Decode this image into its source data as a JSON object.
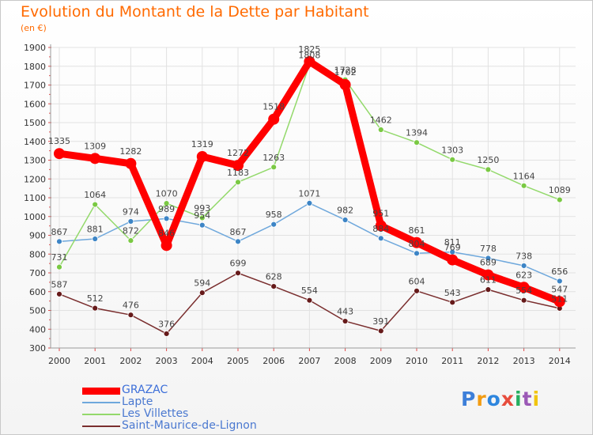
{
  "title": "Evolution du Montant de la Dette par Habitant",
  "subtitle": "(en €)",
  "logo": "Proxiti",
  "colors": {
    "title": "#ff6a00",
    "axis_text": "#333333",
    "grid": "#e2e2e2",
    "tick": "#e34a4a",
    "label": "#444444"
  },
  "chart_data": {
    "type": "line",
    "title": "Evolution du Montant de la Dette par Habitant",
    "subtitle": "(en €)",
    "x": [
      "2000",
      "2001",
      "2002",
      "2003",
      "2004",
      "2005",
      "2006",
      "2007",
      "2008",
      "2009",
      "2010",
      "2011",
      "2012",
      "2013",
      "2014"
    ],
    "y_ticks": [
      300,
      400,
      500,
      600,
      700,
      800,
      900,
      1000,
      1100,
      1200,
      1300,
      1400,
      1500,
      1600,
      1700,
      1800,
      1900
    ],
    "ylim": [
      300,
      1900
    ],
    "grid": true,
    "legend_position": "bottom-left",
    "series": [
      {
        "name": "GRAZAC",
        "color": "#ff0000",
        "marker": "#ff0000",
        "width": 9,
        "radius": 7,
        "values": [
          1335,
          1309,
          1282,
          846,
          1319,
          1272,
          1518,
          1825,
          1702,
          951,
          861,
          769,
          689,
          623,
          547
        ]
      },
      {
        "name": "Lapte",
        "color": "#6fa8dc",
        "marker": "#3d85c6",
        "width": 1.5,
        "radius": 3.5,
        "values": [
          867,
          881,
          974,
          989,
          954,
          867,
          958,
          1071,
          982,
          884,
          804,
          811,
          778,
          738,
          656
        ]
      },
      {
        "name": "Les Villettes",
        "color": "#93d96b",
        "marker": "#7ac943",
        "width": 1.5,
        "radius": 3.5,
        "values": [
          731,
          1064,
          872,
          1070,
          993,
          1183,
          1263,
          1808,
          1728,
          1462,
          1394,
          1303,
          1250,
          1164,
          1089
        ]
      },
      {
        "name": "Saint-Maurice-de-Lignon",
        "color": "#7a2e2e",
        "marker": "#661a1a",
        "width": 1.5,
        "radius": 3.5,
        "values": [
          587,
          512,
          476,
          376,
          594,
          699,
          628,
          554,
          443,
          391,
          604,
          543,
          611,
          554,
          511
        ]
      }
    ]
  }
}
